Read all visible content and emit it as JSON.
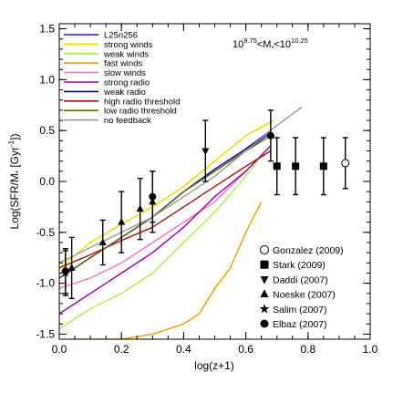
{
  "chart_data": {
    "type": "line",
    "xlabel": "log(z+1)",
    "ylabel": "Log(SFR/M* [Gyr^-1])",
    "ylabel_parts": {
      "main": "Log(SFR/M",
      "sub": "*",
      "sep": " [Gyr",
      "sup": "-1",
      "end": "])"
    },
    "xlim": [
      0.0,
      1.0
    ],
    "ylim": [
      -1.55,
      1.55
    ],
    "x_ticks": [
      "0.0",
      "0.2",
      "0.4",
      "0.6",
      "0.8",
      "1.0"
    ],
    "y_ticks": [
      "-1.5",
      "-1.0",
      "-0.5",
      "0.0",
      "0.5",
      "1.0",
      "1.5"
    ],
    "annotation": {
      "parts": [
        {
          "t": "10",
          "s": "n"
        },
        {
          "t": "9.75",
          "s": "sup"
        },
        {
          "t": "<M",
          "s": "n"
        },
        {
          "t": "*",
          "s": "sub"
        },
        {
          "t": "<10",
          "s": "n"
        },
        {
          "t": "10.25",
          "s": "sup"
        }
      ]
    },
    "series": [
      {
        "name": "L25n256",
        "color": "#1a1aff",
        "x": [
          0.0,
          0.1,
          0.2,
          0.3,
          0.4,
          0.5,
          0.6,
          0.68
        ],
        "y": [
          -0.95,
          -0.75,
          -0.55,
          -0.35,
          -0.1,
          0.1,
          0.3,
          0.48
        ]
      },
      {
        "name": "strong winds",
        "color": "#f0d800",
        "x": [
          0.0,
          0.1,
          0.2,
          0.3,
          0.4,
          0.5,
          0.6,
          0.69
        ],
        "y": [
          -0.85,
          -0.6,
          -0.42,
          -0.25,
          -0.05,
          0.2,
          0.45,
          0.6
        ]
      },
      {
        "name": "weak winds",
        "color": "#a8f050",
        "x": [
          0.0,
          0.1,
          0.2,
          0.3,
          0.4,
          0.5,
          0.6,
          0.66
        ],
        "y": [
          -1.45,
          -1.25,
          -1.1,
          -0.9,
          -0.6,
          -0.3,
          0.05,
          0.3
        ]
      },
      {
        "name": "fast winds",
        "color": "#f0a000",
        "x": [
          0.04,
          0.1,
          0.2,
          0.3,
          0.4,
          0.45,
          0.5,
          0.55,
          0.6,
          0.65
        ],
        "y": [
          -1.55,
          -1.55,
          -1.55,
          -1.5,
          -1.4,
          -1.3,
          -1.05,
          -0.85,
          -0.5,
          -0.2
        ]
      },
      {
        "name": "slow winds",
        "color": "#ff70c0",
        "x": [
          0.0,
          0.1,
          0.2,
          0.3,
          0.4,
          0.5,
          0.6,
          0.68
        ],
        "y": [
          -1.05,
          -0.95,
          -0.8,
          -0.6,
          -0.4,
          -0.2,
          0.1,
          0.35
        ]
      },
      {
        "name": "strong radio",
        "color": "#9900aa",
        "x": [
          0.0,
          0.1,
          0.2,
          0.3,
          0.4,
          0.5,
          0.6,
          0.68
        ],
        "y": [
          -1.3,
          -1.1,
          -0.9,
          -0.7,
          -0.45,
          -0.15,
          0.1,
          0.35
        ]
      },
      {
        "name": "weak radio",
        "color": "#000080",
        "x": [
          0.0,
          0.1,
          0.2,
          0.3,
          0.4,
          0.5,
          0.6,
          0.68
        ],
        "y": [
          -0.95,
          -0.75,
          -0.55,
          -0.35,
          -0.1,
          0.12,
          0.32,
          0.5
        ]
      },
      {
        "name": "high radio threshold",
        "color": "#aa1010",
        "x": [
          0.0,
          0.1,
          0.2,
          0.3,
          0.4,
          0.5,
          0.6,
          0.68
        ],
        "y": [
          -0.85,
          -0.72,
          -0.58,
          -0.45,
          -0.25,
          -0.05,
          0.15,
          0.3
        ]
      },
      {
        "name": "low radio threshold",
        "color": "#607000",
        "x": [
          0.0,
          0.1,
          0.2,
          0.3,
          0.4,
          0.5,
          0.6,
          0.68
        ],
        "y": [
          -0.95,
          -0.75,
          -0.55,
          -0.35,
          -0.1,
          0.1,
          0.3,
          0.45
        ]
      },
      {
        "name": "no feedback",
        "color": "#999999",
        "x": [
          0.0,
          0.1,
          0.2,
          0.3,
          0.4,
          0.5,
          0.6,
          0.7,
          0.78
        ],
        "y": [
          -0.8,
          -0.65,
          -0.5,
          -0.35,
          -0.15,
          0.05,
          0.3,
          0.55,
          0.73
        ]
      }
    ],
    "observations": [
      {
        "name": "Gonzalez (2009)",
        "marker": "circle-open",
        "points": [
          {
            "x": 0.92,
            "y": 0.18,
            "yerr_low": 0.25,
            "yerr_high": 0.25
          }
        ]
      },
      {
        "name": "Stark (2009)",
        "marker": "square",
        "points": [
          {
            "x": 0.7,
            "y": 0.15,
            "yerr_low": 0.28,
            "yerr_high": 0.28
          },
          {
            "x": 0.76,
            "y": 0.15,
            "yerr_low": 0.28,
            "yerr_high": 0.28
          },
          {
            "x": 0.85,
            "y": 0.15,
            "yerr_low": 0.28,
            "yerr_high": 0.28
          }
        ]
      },
      {
        "name": "Daddi (2007)",
        "marker": "triangle-down",
        "points": [
          {
            "x": 0.47,
            "y": 0.3,
            "yerr_low": 0.3,
            "yerr_high": 0.3
          }
        ]
      },
      {
        "name": "Noeske (2007)",
        "marker": "triangle-up",
        "points": [
          {
            "x": 0.04,
            "y": -0.85,
            "yerr_low": 0.3,
            "yerr_high": 0.3
          },
          {
            "x": 0.14,
            "y": -0.6,
            "yerr_low": 0.22,
            "yerr_high": 0.22
          },
          {
            "x": 0.2,
            "y": -0.4,
            "yerr_low": 0.3,
            "yerr_high": 0.3
          },
          {
            "x": 0.26,
            "y": -0.27,
            "yerr_low": 0.3,
            "yerr_high": 0.3
          },
          {
            "x": 0.3,
            "y": -0.2,
            "yerr_low": 0.3,
            "yerr_high": 0.3
          }
        ]
      },
      {
        "name": "Salim (2007)",
        "marker": "star",
        "points": [
          {
            "x": 0.02,
            "y": -0.9,
            "yerr_low": 0.22,
            "yerr_high": 0.22
          }
        ]
      },
      {
        "name": "Elbaz (2007)",
        "marker": "circle",
        "points": [
          {
            "x": 0.02,
            "y": -0.88,
            "yerr_low": 0.22,
            "yerr_high": 0.22
          },
          {
            "x": 0.3,
            "y": -0.15,
            "yerr_low": 0.25,
            "yerr_high": 0.25
          },
          {
            "x": 0.68,
            "y": 0.45,
            "yerr_low": 0.25,
            "yerr_high": 0.25
          }
        ]
      }
    ]
  }
}
